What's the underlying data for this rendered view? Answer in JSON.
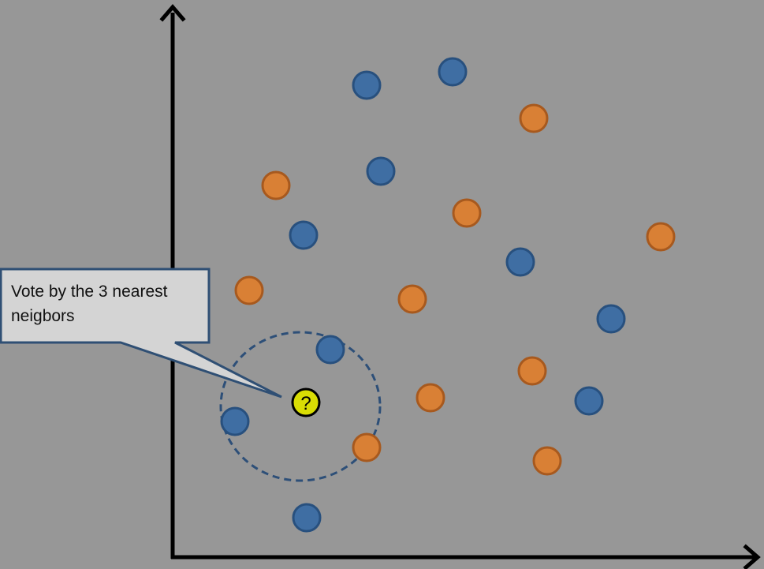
{
  "callout": {
    "text": "Vote by the 3 nearest\nneigbors"
  },
  "query_point": {
    "label": "?",
    "fill": "#d9dd04",
    "stroke": "#000000"
  },
  "colors": {
    "background": "#979797",
    "blue_fill": "#3f6ea3",
    "blue_stroke": "#28507e",
    "orange_fill": "#d98035",
    "orange_stroke": "#a7591e",
    "axis": "#000000",
    "neighborhood_ring": "#2d4f78",
    "callout_fill": "#d4d4d4",
    "callout_stroke": "#2f4f74"
  },
  "classes": [
    "blue",
    "orange"
  ],
  "neighbors_k": 3,
  "icons": {
    "x_axis_arrow": "arrowhead-right-icon",
    "y_axis_arrow": "arrowhead-up-icon"
  }
}
